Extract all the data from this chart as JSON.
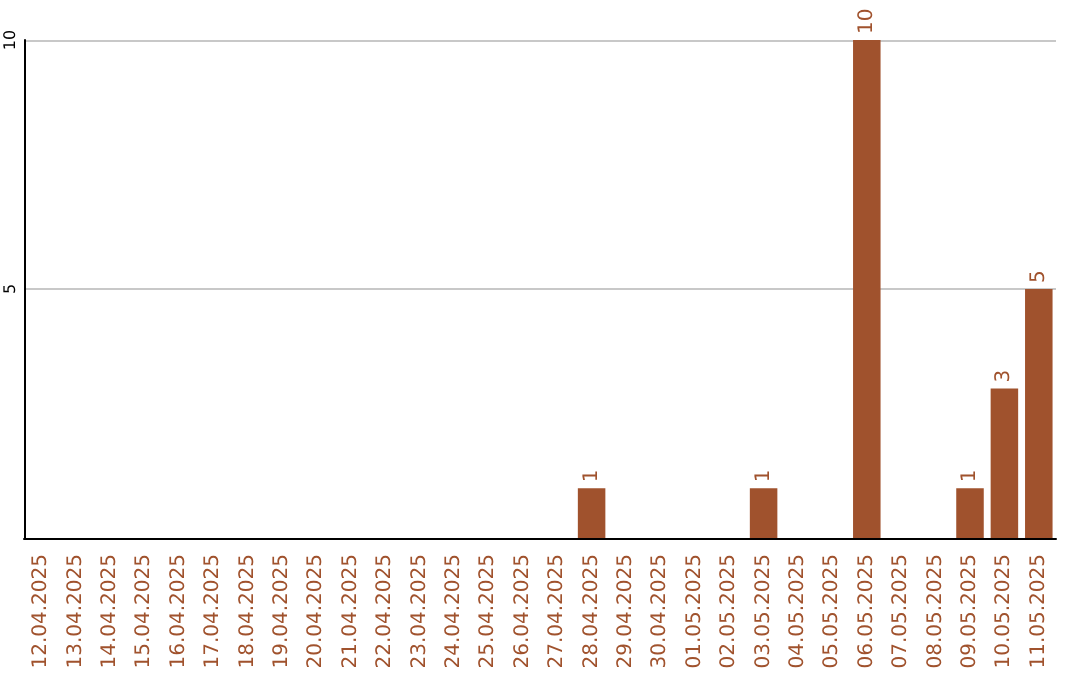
{
  "chart_data": {
    "type": "bar",
    "categories": [
      "12.04.2025",
      "13.04.2025",
      "14.04.2025",
      "15.04.2025",
      "16.04.2025",
      "17.04.2025",
      "18.04.2025",
      "19.04.2025",
      "20.04.2025",
      "21.04.2025",
      "22.04.2025",
      "23.04.2025",
      "24.04.2025",
      "25.04.2025",
      "26.04.2025",
      "27.04.2025",
      "28.04.2025",
      "29.04.2025",
      "30.04.2025",
      "01.05.2025",
      "02.05.2025",
      "03.05.2025",
      "04.05.2025",
      "05.05.2025",
      "06.05.2025",
      "07.05.2025",
      "08.05.2025",
      "09.05.2025",
      "10.05.2025",
      "11.05.2025"
    ],
    "values": [
      0,
      0,
      0,
      0,
      0,
      0,
      0,
      0,
      0,
      0,
      0,
      0,
      0,
      0,
      0,
      0,
      1,
      0,
      0,
      0,
      0,
      1,
      0,
      0,
      10,
      0,
      0,
      1,
      3,
      5
    ],
    "value_labels": [
      null,
      null,
      null,
      null,
      null,
      null,
      null,
      null,
      null,
      null,
      null,
      null,
      null,
      null,
      null,
      null,
      "1",
      null,
      null,
      null,
      null,
      "1",
      null,
      null,
      "10",
      null,
      null,
      "1",
      "3",
      "5"
    ],
    "color": "#a0522d",
    "ylim": [
      0,
      10
    ],
    "yticks": [
      5,
      10
    ],
    "grid": "y"
  }
}
